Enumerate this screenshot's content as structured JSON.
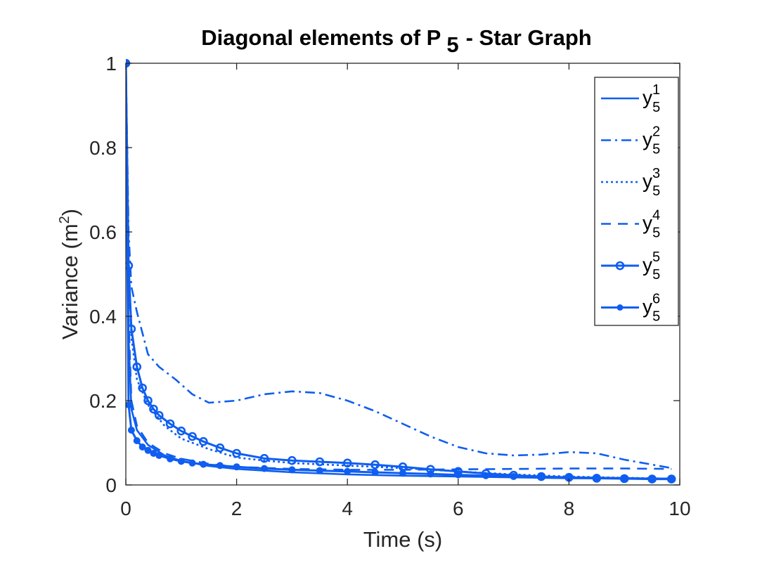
{
  "chart_data": {
    "type": "line",
    "title": "Diagonal elements of P",
    "title_subscript": "5",
    "title_suffix": "-  Star Graph",
    "xlabel": "Time (s)",
    "ylabel": "Variance (m",
    "ylabel_superscript": "2",
    "ylabel_suffix": ")",
    "xlim": [
      0,
      10
    ],
    "ylim": [
      0,
      1
    ],
    "xticks": [
      "0",
      "2",
      "4",
      "6",
      "8",
      "10"
    ],
    "yticks": [
      "0",
      "0.2",
      "0.4",
      "0.6",
      "0.8",
      "1"
    ],
    "grid": false,
    "legend_position": "top-right",
    "color": "#0f5ef0",
    "series": [
      {
        "name": "y",
        "sub": "5",
        "sup": "1",
        "style": "solid",
        "x": [
          0,
          0.05,
          0.1,
          0.2,
          0.4,
          0.7,
          1.0,
          1.5,
          2.0,
          3.0,
          4.0,
          5.0,
          6.0,
          7.0,
          8.0,
          9.0,
          9.85
        ],
        "y": [
          1.0,
          0.35,
          0.18,
          0.13,
          0.095,
          0.07,
          0.057,
          0.045,
          0.038,
          0.03,
          0.025,
          0.022,
          0.02,
          0.018,
          0.016,
          0.015,
          0.014
        ]
      },
      {
        "name": "y",
        "sub": "5",
        "sup": "2",
        "style": "dashdot",
        "x": [
          0,
          0.05,
          0.1,
          0.2,
          0.4,
          0.6,
          0.9,
          1.2,
          1.5,
          2.0,
          2.5,
          3.0,
          3.5,
          4.0,
          4.5,
          5.0,
          5.5,
          6.0,
          6.5,
          7.0,
          7.5,
          8.0,
          8.5,
          9.0,
          9.85
        ],
        "y": [
          1.0,
          0.6,
          0.47,
          0.41,
          0.31,
          0.28,
          0.25,
          0.215,
          0.195,
          0.2,
          0.215,
          0.222,
          0.218,
          0.2,
          0.175,
          0.145,
          0.115,
          0.09,
          0.075,
          0.07,
          0.072,
          0.078,
          0.075,
          0.06,
          0.04
        ]
      },
      {
        "name": "y",
        "sub": "5",
        "sup": "3",
        "style": "dotted",
        "x": [
          0,
          0.05,
          0.1,
          0.2,
          0.4,
          0.7,
          1.0,
          1.5,
          2.0,
          2.5,
          3.0,
          4.0,
          5.0,
          6.0,
          7.0,
          8.0,
          9.0,
          9.85
        ],
        "y": [
          1.0,
          0.55,
          0.35,
          0.25,
          0.19,
          0.14,
          0.11,
          0.085,
          0.065,
          0.058,
          0.052,
          0.046,
          0.04,
          0.032,
          0.025,
          0.02,
          0.017,
          0.015
        ]
      },
      {
        "name": "y",
        "sub": "5",
        "sup": "4",
        "style": "dashed",
        "x": [
          0,
          0.05,
          0.1,
          0.2,
          0.4,
          0.7,
          1.0,
          1.5,
          2.0,
          3.0,
          4.0,
          5.0,
          6.0,
          7.0,
          8.0,
          9.0,
          9.85
        ],
        "y": [
          1.0,
          0.4,
          0.2,
          0.14,
          0.1,
          0.075,
          0.062,
          0.05,
          0.043,
          0.038,
          0.036,
          0.036,
          0.037,
          0.038,
          0.039,
          0.039,
          0.038
        ]
      },
      {
        "name": "y",
        "sub": "5",
        "sup": "5",
        "style": "circle",
        "x": [
          0,
          0.05,
          0.1,
          0.2,
          0.3,
          0.4,
          0.5,
          0.6,
          0.8,
          1.0,
          1.2,
          1.4,
          1.7,
          2.0,
          2.5,
          3.0,
          3.5,
          4.0,
          4.5,
          5.0,
          5.5,
          6.0,
          6.5,
          7.0,
          7.5,
          8.0,
          8.5,
          9.0,
          9.5,
          9.85
        ],
        "y": [
          1.0,
          0.52,
          0.37,
          0.28,
          0.23,
          0.2,
          0.18,
          0.165,
          0.145,
          0.128,
          0.115,
          0.103,
          0.088,
          0.075,
          0.063,
          0.058,
          0.055,
          0.052,
          0.048,
          0.043,
          0.037,
          0.032,
          0.027,
          0.023,
          0.02,
          0.018,
          0.016,
          0.015,
          0.014,
          0.014
        ]
      },
      {
        "name": "y",
        "sub": "5",
        "sup": "6",
        "style": "dot",
        "x": [
          0,
          0.05,
          0.1,
          0.2,
          0.3,
          0.4,
          0.5,
          0.6,
          0.8,
          1.0,
          1.2,
          1.4,
          1.7,
          2.0,
          2.5,
          3.0,
          3.5,
          4.0,
          4.5,
          5.0,
          5.5,
          6.0,
          6.5,
          7.0,
          7.5,
          8.0,
          8.5,
          9.0,
          9.5,
          9.85
        ],
        "y": [
          1.0,
          0.19,
          0.13,
          0.105,
          0.09,
          0.082,
          0.075,
          0.07,
          0.062,
          0.056,
          0.052,
          0.049,
          0.046,
          0.043,
          0.039,
          0.036,
          0.034,
          0.032,
          0.03,
          0.028,
          0.026,
          0.024,
          0.022,
          0.02,
          0.019,
          0.018,
          0.017,
          0.016,
          0.015,
          0.015
        ]
      }
    ]
  }
}
